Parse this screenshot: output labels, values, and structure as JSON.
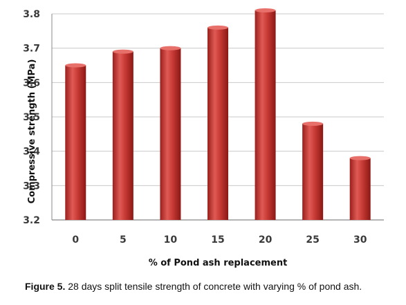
{
  "chart_data": {
    "type": "bar",
    "categories": [
      "0",
      "5",
      "10",
      "15",
      "20",
      "25",
      "30"
    ],
    "values": [
      3.65,
      3.69,
      3.7,
      3.76,
      3.81,
      3.48,
      3.38
    ],
    "ylim": [
      3.2,
      3.8
    ],
    "yticks": [
      "3.2",
      "3.3",
      "3.4",
      "3.5",
      "3.6",
      "3.7",
      "3.8"
    ],
    "xlabel": "% of Pond ash replacement",
    "ylabel": "Compressive strength (MPa)",
    "bar_color": "#c0312f",
    "grid": true
  },
  "caption": {
    "label": "Figure 5.",
    "text": " 28 days split tensile strength of concrete with varying % of pond ash."
  }
}
